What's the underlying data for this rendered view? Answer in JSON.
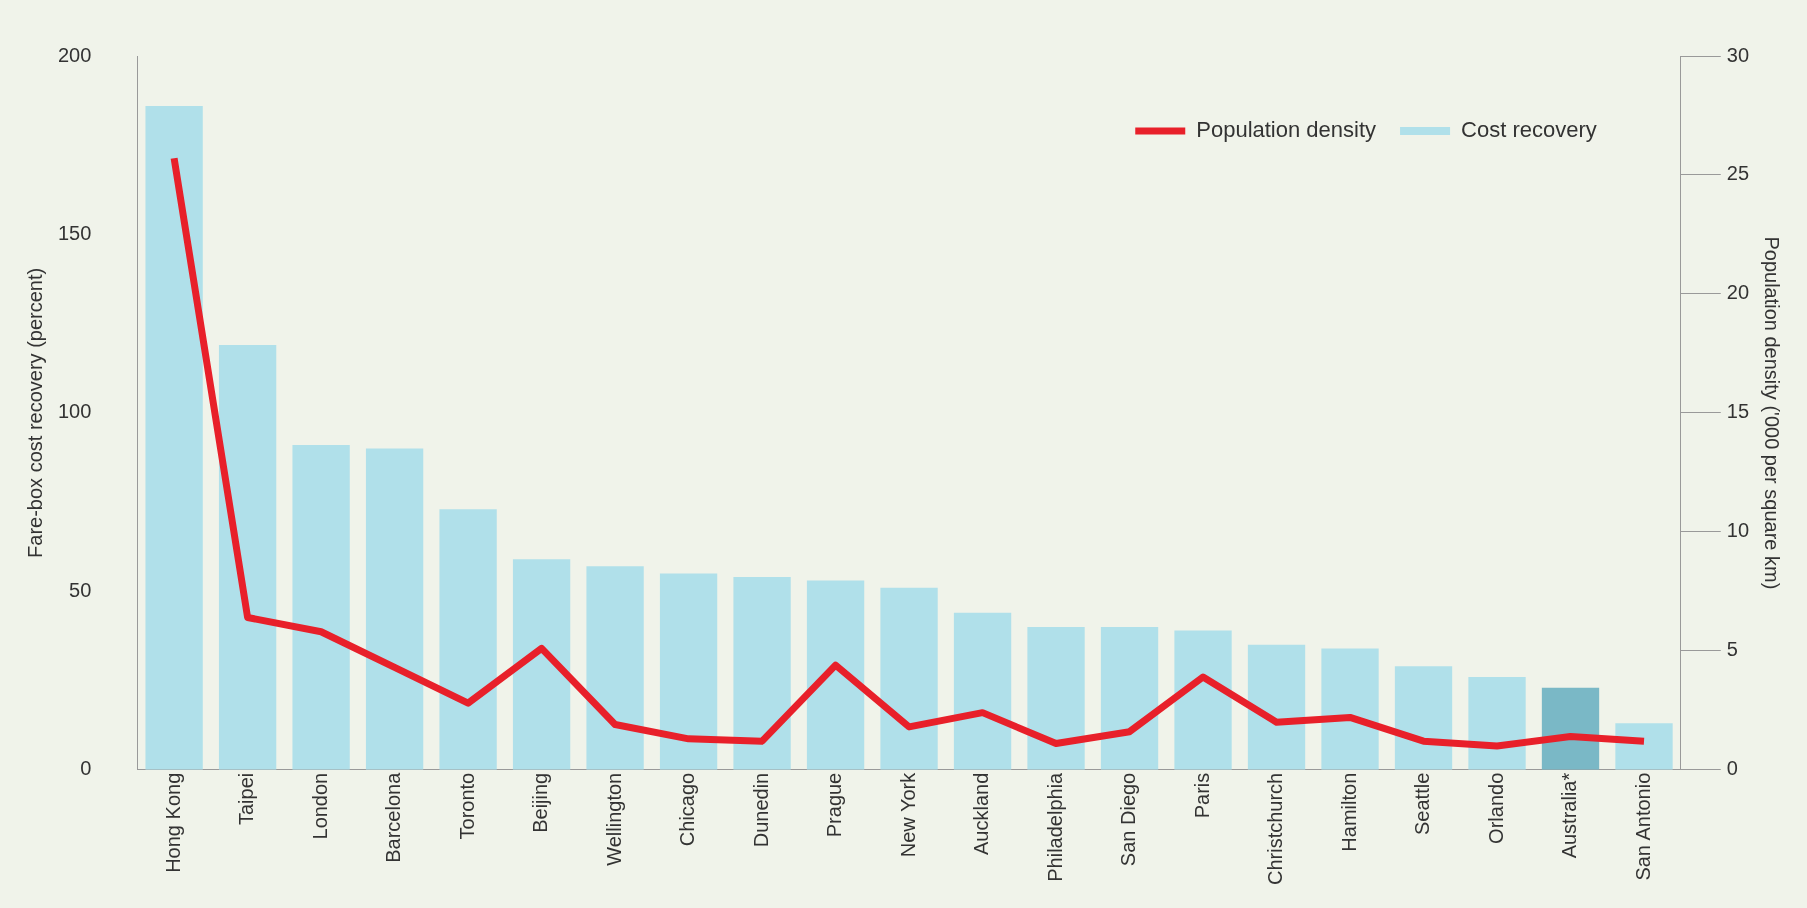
{
  "chart_data": {
    "type": "bar",
    "xlabel": null,
    "ylabel": "Fare-box cost recovery (percent)",
    "y2label": "Population density ('000 per square km)",
    "categories": [
      "Hong Kong",
      "Taipei",
      "London",
      "Barcelona",
      "Toronto",
      "Beijing",
      "Wellington",
      "Chicago",
      "Dunedin",
      "Prague",
      "New York",
      "Auckland",
      "Philadelphia",
      "San Diego",
      "Paris",
      "Christchurch",
      "Hamilton",
      "Seattle",
      "Orlando",
      "Australia*",
      "San Antonio"
    ],
    "series": [
      {
        "name": "Population density",
        "type": "line",
        "axis": "y2",
        "color": "#e8202a",
        "values": [
          25.7,
          6.4,
          5.8,
          4.3,
          2.8,
          5.1,
          1.9,
          1.3,
          1.2,
          4.4,
          1.8,
          2.4,
          1.1,
          1.6,
          3.9,
          2.0,
          2.2,
          1.2,
          1.0,
          1.4,
          1.2
        ]
      },
      {
        "name": "Cost recovery",
        "color": "#b0e0ea",
        "colors": [
          "#b0e0ea",
          "#b0e0ea",
          "#b0e0ea",
          "#b0e0ea",
          "#b0e0ea",
          "#b0e0ea",
          "#b0e0ea",
          "#b0e0ea",
          "#b0e0ea",
          "#b0e0ea",
          "#b0e0ea",
          "#b0e0ea",
          "#b0e0ea",
          "#b0e0ea",
          "#b0e0ea",
          "#b0e0ea",
          "#b0e0ea",
          "#b0e0ea",
          "#b0e0ea",
          "#7ab8c6",
          "#b0e0ea"
        ],
        "values": [
          186,
          119,
          91,
          90,
          73,
          59,
          57,
          55,
          54,
          53,
          51,
          44,
          40,
          40,
          39,
          35,
          34,
          29,
          26,
          23,
          13
        ]
      }
    ],
    "ylim": [
      0,
      200
    ],
    "yticks": [
      0,
      50,
      100,
      150,
      200
    ],
    "y2lim": [
      0,
      30
    ],
    "y2ticks": [
      0,
      5,
      10,
      15,
      20,
      25,
      30
    ],
    "grid": false,
    "legend": "top right",
    "marker": "none",
    "line_style": "solid"
  }
}
